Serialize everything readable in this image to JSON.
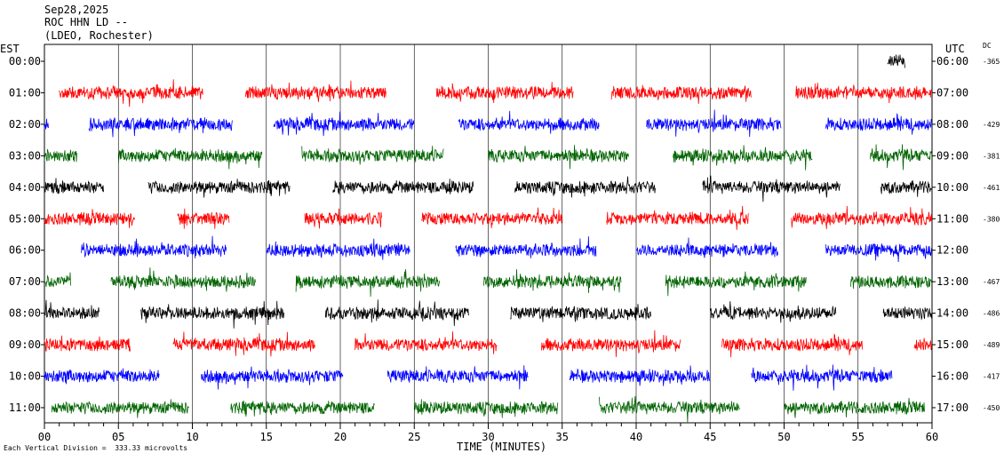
{
  "header": {
    "date": "Sep28,2025",
    "station": "ROC HHN LD --",
    "network": "(LDEO, Rochester)"
  },
  "axes": {
    "left_title": "EST",
    "right_title": "UTC",
    "dc_title": "DC",
    "xlabel": "TIME (MINUTES)",
    "scale_note": "Each Vertical Division =  333.33 microvolts"
  },
  "chart_data": {
    "type": "line",
    "title": "",
    "xlabel": "TIME (MINUTES)",
    "xlim": [
      0,
      60
    ],
    "x_ticks": [
      "00",
      "05",
      "10",
      "15",
      "20",
      "25",
      "30",
      "35",
      "40",
      "45",
      "50",
      "55",
      "60"
    ],
    "rows": [
      {
        "est": "00:00",
        "utc": "06:00",
        "dc": "-365",
        "color": "#000000",
        "segments": [
          [
            57.0,
            58.2
          ]
        ]
      },
      {
        "est": "01:00",
        "utc": "07:00",
        "dc": "",
        "color": "#ff0000",
        "segments": [
          [
            1.0,
            10.7
          ],
          [
            13.6,
            23.1
          ],
          [
            26.5,
            35.8
          ],
          [
            38.3,
            47.8
          ],
          [
            50.8,
            60.0
          ]
        ]
      },
      {
        "est": "02:00",
        "utc": "08:00",
        "dc": "-429",
        "color": "#0000ff",
        "segments": [
          [
            0.0,
            0.3
          ],
          [
            3.0,
            12.7
          ],
          [
            15.5,
            25.0
          ],
          [
            28.0,
            37.5
          ],
          [
            40.7,
            49.8
          ],
          [
            52.8,
            60.0
          ]
        ]
      },
      {
        "est": "03:00",
        "utc": "09:00",
        "dc": "-381",
        "color": "#006400",
        "segments": [
          [
            0.0,
            2.2
          ],
          [
            5.0,
            14.7
          ],
          [
            17.4,
            27.0
          ],
          [
            30.0,
            39.5
          ],
          [
            42.5,
            51.9
          ],
          [
            55.8,
            60.0
          ]
        ]
      },
      {
        "est": "04:00",
        "utc": "10:00",
        "dc": "-461",
        "color": "#000000",
        "segments": [
          [
            0.0,
            4.0
          ],
          [
            7.0,
            16.6
          ],
          [
            19.5,
            29.0
          ],
          [
            31.8,
            41.3
          ],
          [
            44.5,
            53.8
          ],
          [
            56.5,
            60.0
          ]
        ]
      },
      {
        "est": "05:00",
        "utc": "11:00",
        "dc": "-380",
        "color": "#ff0000",
        "segments": [
          [
            0.0,
            6.1
          ],
          [
            9.0,
            12.5
          ],
          [
            17.6,
            22.8
          ],
          [
            25.5,
            35.0
          ],
          [
            38.0,
            47.6
          ],
          [
            50.5,
            60.0
          ]
        ]
      },
      {
        "est": "06:00",
        "utc": "12:00",
        "dc": "",
        "color": "#0000ff",
        "segments": [
          [
            2.5,
            12.3
          ],
          [
            15.0,
            24.7
          ],
          [
            27.8,
            37.3
          ],
          [
            40.0,
            49.6
          ],
          [
            52.8,
            60.0
          ]
        ]
      },
      {
        "est": "07:00",
        "utc": "13:00",
        "dc": "-467",
        "color": "#006400",
        "segments": [
          [
            0.0,
            1.8
          ],
          [
            4.5,
            14.3
          ],
          [
            17.0,
            26.7
          ],
          [
            29.7,
            39.0
          ],
          [
            42.0,
            51.5
          ],
          [
            54.5,
            60.0
          ]
        ]
      },
      {
        "est": "08:00",
        "utc": "14:00",
        "dc": "-486",
        "color": "#000000",
        "segments": [
          [
            0.0,
            3.7
          ],
          [
            6.5,
            16.2
          ],
          [
            19.0,
            28.7
          ],
          [
            31.5,
            41.0
          ],
          [
            45.0,
            53.5
          ],
          [
            56.7,
            60.0
          ]
        ]
      },
      {
        "est": "09:00",
        "utc": "15:00",
        "dc": "-489",
        "color": "#ff0000",
        "segments": [
          [
            0.0,
            5.8
          ],
          [
            8.7,
            18.3
          ],
          [
            21.0,
            30.6
          ],
          [
            33.6,
            43.0
          ],
          [
            45.8,
            55.3
          ],
          [
            58.8,
            60.0
          ]
        ]
      },
      {
        "est": "10:00",
        "utc": "16:00",
        "dc": "-417",
        "color": "#0000ff",
        "segments": [
          [
            0.0,
            7.8
          ],
          [
            10.6,
            20.2
          ],
          [
            23.2,
            32.7
          ],
          [
            35.5,
            45.0
          ],
          [
            47.8,
            57.3
          ]
        ]
      },
      {
        "est": "11:00",
        "utc": "17:00",
        "dc": "-450",
        "color": "#006400",
        "segments": [
          [
            0.5,
            9.8
          ],
          [
            12.6,
            22.3
          ],
          [
            25.0,
            34.7
          ],
          [
            37.5,
            47.0
          ],
          [
            50.0,
            59.5
          ]
        ]
      }
    ]
  }
}
